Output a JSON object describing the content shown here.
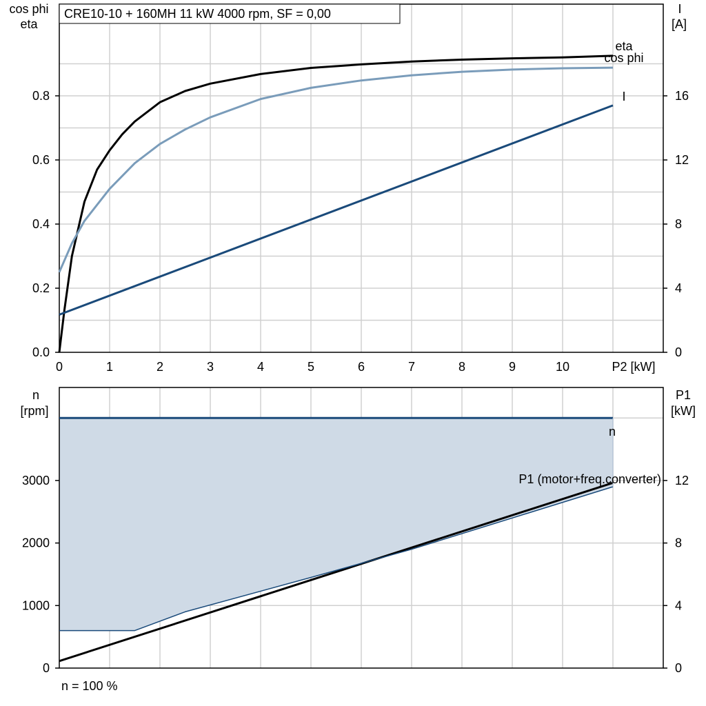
{
  "chart_data": [
    {
      "type": "line",
      "title": "CRE10-10 + 160MH   11 kW   4000 rpm, SF = 0,00",
      "xlabel": "P2 [kW]",
      "ylabel_left": [
        "cos phi",
        "eta"
      ],
      "ylabel_right": [
        "I",
        "[A]"
      ],
      "xlim": [
        0,
        12
      ],
      "ylim_left": [
        0,
        1.0
      ],
      "ylim_right": [
        0,
        20
      ],
      "x_ticks": [
        "0",
        "1",
        "2",
        "3",
        "4",
        "5",
        "6",
        "7",
        "8",
        "9",
        "10"
      ],
      "y_ticks_left": [
        "0.0",
        "0.2",
        "0.4",
        "0.6",
        "0.8"
      ],
      "y_ticks_right": [
        "0",
        "4",
        "8",
        "12",
        "16"
      ],
      "grid": true,
      "series": [
        {
          "name": "eta",
          "axis": "left",
          "color": "#000000",
          "x": [
            0,
            0.1,
            0.25,
            0.5,
            0.75,
            1,
            1.25,
            1.5,
            2,
            2.5,
            3,
            4,
            5,
            6,
            7,
            8,
            9,
            10,
            11
          ],
          "y": [
            0.0,
            0.13,
            0.3,
            0.47,
            0.57,
            0.63,
            0.68,
            0.72,
            0.78,
            0.815,
            0.838,
            0.868,
            0.887,
            0.898,
            0.907,
            0.913,
            0.917,
            0.92,
            0.925
          ]
        },
        {
          "name": "cos phi",
          "axis": "left",
          "color": "#7a9cba",
          "x": [
            0,
            0.25,
            0.5,
            0.75,
            1,
            1.5,
            2,
            2.5,
            3,
            4,
            5,
            6,
            7,
            8,
            9,
            10,
            11
          ],
          "y": [
            0.25,
            0.34,
            0.41,
            0.46,
            0.51,
            0.59,
            0.65,
            0.695,
            0.733,
            0.79,
            0.825,
            0.848,
            0.864,
            0.875,
            0.882,
            0.886,
            0.888
          ]
        },
        {
          "name": "I",
          "axis": "right",
          "color": "#1a4a7a",
          "x": [
            0,
            11
          ],
          "y": [
            2.35,
            15.4
          ]
        }
      ]
    },
    {
      "type": "line",
      "xlabel": "",
      "ylabel_left": [
        "n",
        "[rpm]"
      ],
      "ylabel_right": [
        "P1",
        "[kW]"
      ],
      "ylim_left": [
        0,
        4000
      ],
      "ylim_right": [
        0,
        16
      ],
      "y_ticks_left": [
        "0",
        "1000",
        "2000",
        "3000"
      ],
      "y_ticks_right": [
        "0",
        "4",
        "8",
        "12"
      ],
      "grid": true,
      "footnote": "n = 100 %",
      "series": [
        {
          "name": "n",
          "axis": "left",
          "color": "#1a4a7a",
          "x": [
            0,
            11
          ],
          "y": [
            4000,
            4000
          ]
        },
        {
          "name": "P1 (motor+freq.converter)",
          "axis": "right",
          "color": "#000000",
          "x": [
            0,
            11
          ],
          "y": [
            0.45,
            11.85
          ]
        },
        {
          "name": "",
          "axis": "left",
          "color": "#1a4a7a",
          "role": "lower boundary of shaded operating area",
          "x": [
            0,
            1.5,
            2.5,
            5,
            7,
            9,
            11
          ],
          "y": [
            600,
            600,
            900,
            1450,
            1900,
            2400,
            2900
          ]
        }
      ],
      "area_fill": "#cfdae6"
    }
  ]
}
